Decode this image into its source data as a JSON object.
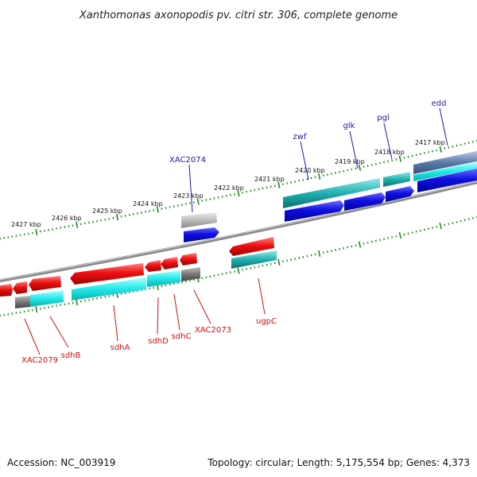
{
  "title": "Xanthomonas axonopodis pv. citri str. 306, complete genome",
  "footer": {
    "accession": "Accession: NC_003919",
    "summary": "Topology: circular; Length: 5,175,554 bp; Genes: 4,373"
  },
  "kbp_labels": [
    "2427 kbp",
    "2426 kbp",
    "2425 kbp",
    "2424 kbp",
    "2423 kbp",
    "2422 kbp",
    "2421 kbp",
    "2420 kbp",
    "2419 kbp",
    "2418 kbp",
    "2417 kbp"
  ],
  "gene_labels": {
    "xac2074": "XAC2074",
    "zwf": "zwf",
    "glk": "glk",
    "pgl": "pgl",
    "edd": "edd",
    "xac2079": "XAC2079",
    "sdhB": "sdhB",
    "sdhA": "sdhA",
    "sdhD": "sdhD",
    "sdhC": "sdhC",
    "xac2073": "XAC2073",
    "ugpC": "ugpC"
  },
  "colors": {
    "forward_cds": "#1010e0",
    "reverse_cds": "#ee1111",
    "feature_cyan": "#22e0e0",
    "feature_teal": "#20b0b0",
    "feature_gray": "#777777",
    "feature_light_gray": "#bbbbbb",
    "backbone": "#888888",
    "ticks": "#1a8a1a",
    "label_blue": "#1a1aa6",
    "label_red": "#cc1111"
  }
}
